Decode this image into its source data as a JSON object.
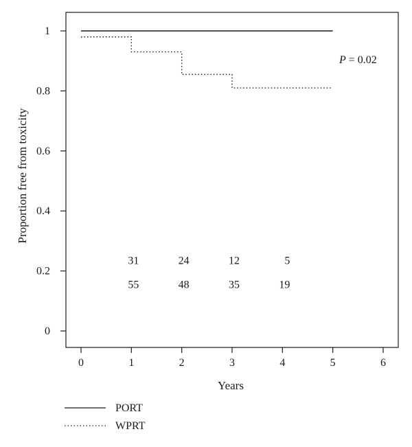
{
  "chart_data": {
    "type": "line",
    "xlabel": "Years",
    "ylabel": "Proportion free from toxicity",
    "xlim": [
      0,
      6
    ],
    "ylim": [
      0,
      1
    ],
    "x_ticks": [
      "0",
      "1",
      "2",
      "3",
      "4",
      "5",
      "6"
    ],
    "y_ticks": [
      "0",
      "0.2",
      "0.4",
      "0.6",
      "0.8",
      "1"
    ],
    "grid": false,
    "legend_position": "bottom-left, below plot",
    "annotation": {
      "p_symbol": "P",
      "p_rest": " = 0.02"
    },
    "series": [
      {
        "name": "PORT",
        "style": "solid",
        "color": "#1a1a1a",
        "step": true,
        "x": [
          0,
          5
        ],
        "y": [
          1.0,
          1.0
        ]
      },
      {
        "name": "WPRT",
        "style": "dotted",
        "color": "#1a1a1a",
        "step": true,
        "x": [
          0,
          1,
          2,
          3,
          5
        ],
        "y": [
          0.98,
          0.93,
          0.855,
          0.81,
          0.81
        ]
      }
    ],
    "numbers_at_risk": [
      {
        "y": 0.235,
        "values": [
          {
            "x": 1,
            "label": "31"
          },
          {
            "x": 2,
            "label": "24"
          },
          {
            "x": 3,
            "label": "12"
          },
          {
            "x": 4,
            "label": "5"
          }
        ]
      },
      {
        "y": 0.155,
        "values": [
          {
            "x": 1,
            "label": "55"
          },
          {
            "x": 2,
            "label": "48"
          },
          {
            "x": 3,
            "label": "35"
          },
          {
            "x": 4,
            "label": "19"
          }
        ]
      }
    ]
  }
}
